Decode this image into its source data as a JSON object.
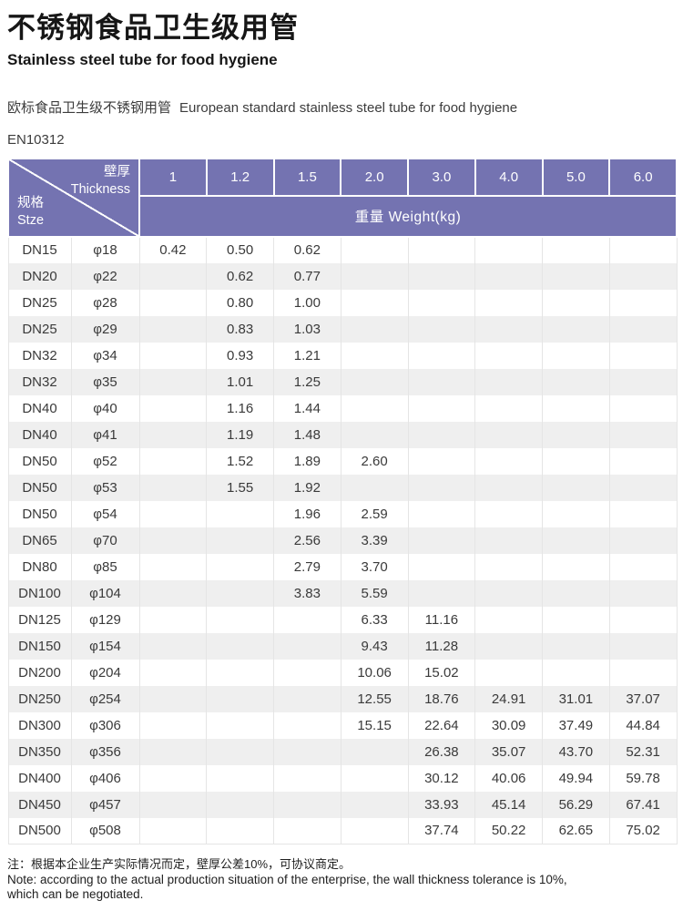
{
  "header": {
    "title_zh": "不锈钢食品卫生级用管",
    "title_en": "Stainless steel tube for food hygiene",
    "subtitle_zh": "欧标食品卫生级不锈钢用管",
    "subtitle_en": "European standard stainless steel tube for food hygiene",
    "standard": "EN10312"
  },
  "table": {
    "corner": {
      "top_zh": "壁厚",
      "top_en": "Thickness",
      "bottom_zh": "规格",
      "bottom_en": "Stze"
    },
    "thickness_columns": [
      "1",
      "1.2",
      "1.5",
      "2.0",
      "3.0",
      "4.0",
      "5.0",
      "6.0"
    ],
    "weight_header": "重量 Weight(kg)",
    "rows": [
      {
        "dn": "DN15",
        "dia": "φ18",
        "weights": [
          "0.42",
          "0.50",
          "0.62",
          "",
          "",
          "",
          "",
          ""
        ]
      },
      {
        "dn": "DN20",
        "dia": "φ22",
        "weights": [
          "",
          "0.62",
          "0.77",
          "",
          "",
          "",
          "",
          ""
        ]
      },
      {
        "dn": "DN25",
        "dia": "φ28",
        "weights": [
          "",
          "0.80",
          "1.00",
          "",
          "",
          "",
          "",
          ""
        ]
      },
      {
        "dn": "DN25",
        "dia": "φ29",
        "weights": [
          "",
          "0.83",
          "1.03",
          "",
          "",
          "",
          "",
          ""
        ]
      },
      {
        "dn": "DN32",
        "dia": "φ34",
        "weights": [
          "",
          "0.93",
          "1.21",
          "",
          "",
          "",
          "",
          ""
        ]
      },
      {
        "dn": "DN32",
        "dia": "φ35",
        "weights": [
          "",
          "1.01",
          "1.25",
          "",
          "",
          "",
          "",
          ""
        ]
      },
      {
        "dn": "DN40",
        "dia": "φ40",
        "weights": [
          "",
          "1.16",
          "1.44",
          "",
          "",
          "",
          "",
          ""
        ]
      },
      {
        "dn": "DN40",
        "dia": "φ41",
        "weights": [
          "",
          "1.19",
          "1.48",
          "",
          "",
          "",
          "",
          ""
        ]
      },
      {
        "dn": "DN50",
        "dia": "φ52",
        "weights": [
          "",
          "1.52",
          "1.89",
          "2.60",
          "",
          "",
          "",
          ""
        ]
      },
      {
        "dn": "DN50",
        "dia": "φ53",
        "weights": [
          "",
          "1.55",
          "1.92",
          "",
          "",
          "",
          "",
          ""
        ]
      },
      {
        "dn": "DN50",
        "dia": "φ54",
        "weights": [
          "",
          "",
          "1.96",
          "2.59",
          "",
          "",
          "",
          ""
        ]
      },
      {
        "dn": "DN65",
        "dia": "φ70",
        "weights": [
          "",
          "",
          "2.56",
          "3.39",
          "",
          "",
          "",
          ""
        ]
      },
      {
        "dn": "DN80",
        "dia": "φ85",
        "weights": [
          "",
          "",
          "2.79",
          "3.70",
          "",
          "",
          "",
          ""
        ]
      },
      {
        "dn": "DN100",
        "dia": "φ104",
        "weights": [
          "",
          "",
          "3.83",
          "5.59",
          "",
          "",
          "",
          ""
        ]
      },
      {
        "dn": "DN125",
        "dia": "φ129",
        "weights": [
          "",
          "",
          "",
          "6.33",
          "11.16",
          "",
          "",
          ""
        ]
      },
      {
        "dn": "DN150",
        "dia": "φ154",
        "weights": [
          "",
          "",
          "",
          "9.43",
          "11.28",
          "",
          "",
          ""
        ]
      },
      {
        "dn": "DN200",
        "dia": "φ204",
        "weights": [
          "",
          "",
          "",
          "10.06",
          "15.02",
          "",
          "",
          ""
        ]
      },
      {
        "dn": "DN250",
        "dia": "φ254",
        "weights": [
          "",
          "",
          "",
          "12.55",
          "18.76",
          "24.91",
          "31.01",
          "37.07"
        ]
      },
      {
        "dn": "DN300",
        "dia": "φ306",
        "weights": [
          "",
          "",
          "",
          "15.15",
          "22.64",
          "30.09",
          "37.49",
          "44.84"
        ]
      },
      {
        "dn": "DN350",
        "dia": "φ356",
        "weights": [
          "",
          "",
          "",
          "",
          "26.38",
          "35.07",
          "43.70",
          "52.31"
        ]
      },
      {
        "dn": "DN400",
        "dia": "φ406",
        "weights": [
          "",
          "",
          "",
          "",
          "30.12",
          "40.06",
          "49.94",
          "59.78"
        ]
      },
      {
        "dn": "DN450",
        "dia": "φ457",
        "weights": [
          "",
          "",
          "",
          "",
          "33.93",
          "45.14",
          "56.29",
          "67.41"
        ]
      },
      {
        "dn": "DN500",
        "dia": "φ508",
        "weights": [
          "",
          "",
          "",
          "",
          "37.74",
          "50.22",
          "62.65",
          "75.02"
        ]
      }
    ]
  },
  "note": {
    "zh": "注：根据本企业生产实际情况而定，壁厚公差10%，可协议商定。",
    "en_line1": "Note: according to the actual production situation of the enterprise, the wall thickness tolerance is 10%,",
    "en_line2": "which can be negotiated."
  },
  "colors": {
    "header_purple": "#7473b1",
    "row_alt": "#efefef",
    "grid_line": "#e5e5e5"
  }
}
